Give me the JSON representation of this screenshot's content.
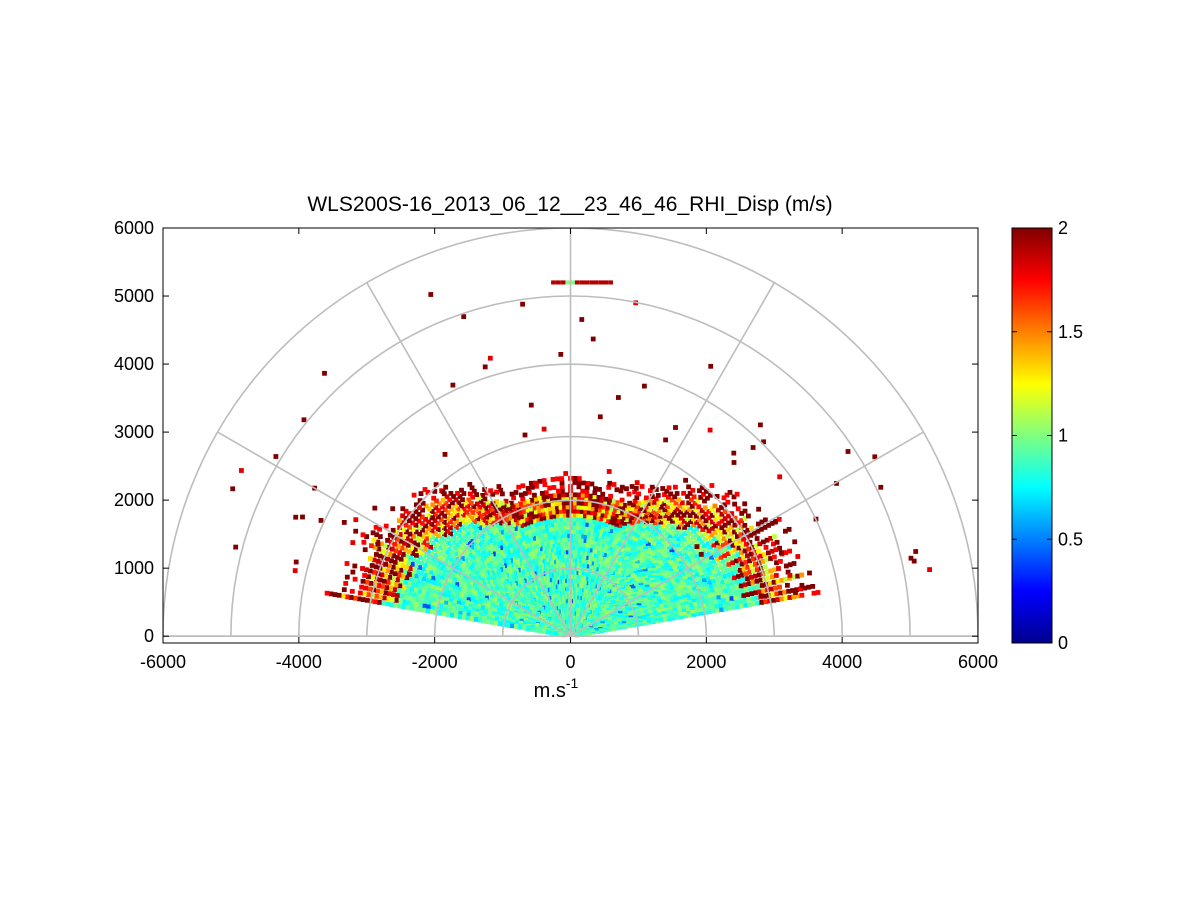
{
  "chart_data": {
    "type": "heatmap",
    "subtype": "polar-rhi-scan",
    "title": "WLS200S-16_2013_06_12__23_46_46_RHI_Disp (m/s)",
    "xlabel": "m.s",
    "xlabel_sup": "-1",
    "ylabel": "",
    "xlim": [
      -6000,
      6000
    ],
    "ylim": [
      -100,
      6000
    ],
    "x_ticks": [
      -6000,
      -4000,
      -2000,
      0,
      2000,
      4000,
      6000
    ],
    "x_tick_labels": [
      "-6000",
      "-4000",
      "-2000",
      "0",
      "2000",
      "4000",
      "6000"
    ],
    "y_ticks": [
      0,
      1000,
      2000,
      3000,
      4000,
      5000,
      6000
    ],
    "y_tick_labels": [
      "0",
      "1000",
      "2000",
      "3000",
      "4000",
      "5000",
      "6000"
    ],
    "polar_grid": {
      "range_rings": [
        1000,
        2000,
        3000,
        4000,
        5000,
        6000
      ],
      "angle_lines_deg": [
        0,
        30,
        60,
        90,
        120,
        150,
        180
      ]
    },
    "colorbar": {
      "colormap": "jet",
      "min": 0,
      "max": 2,
      "ticks": [
        0,
        0.5,
        1,
        1.5,
        2
      ],
      "tick_labels": [
        "0",
        "0.5",
        "1",
        "1.5",
        "2"
      ]
    },
    "data_description": {
      "scan_elevation_deg": [
        10,
        170
      ],
      "dense_region_max_range": 2100,
      "dense_value_typical": 0.9,
      "edge_value": 2.0,
      "lateral_max_range": 4500,
      "sparse_max_range": 5500
    }
  }
}
